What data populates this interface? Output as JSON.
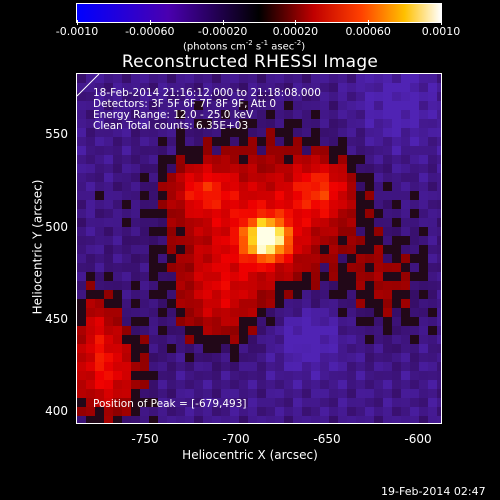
{
  "colorbar": {
    "tick_labels": [
      "-0.0010",
      "-0.00060",
      "-0.00020",
      "0.00020",
      "0.00060",
      "0.0010"
    ],
    "units_prefix": "(photons cm",
    "units_exp1": "-2",
    "units_mid1": " s",
    "units_exp2": "-1",
    "units_mid2": " asec",
    "units_exp3": "-2",
    "units_suffix": ")"
  },
  "title": "Reconstructed RHESSI Image",
  "annotations": {
    "time_range": "18-Feb-2014 21:16:12.000 to 21:18:08.000",
    "detectors": "Detectors: 3F 5F 6F 7F 8F 9F, Att 0",
    "energy": "Energy Range: 12.0 - 25.0 keV",
    "clean": "Clean     Total counts: 6.35E+03",
    "peak": "Position of Peak = [-679,493]"
  },
  "axes": {
    "xlabel": "Heliocentric X (arcsec)",
    "ylabel": "Heliocentric Y (arcsec)",
    "x_ticks": [
      "-750",
      "-700",
      "-650",
      "-600"
    ],
    "y_ticks": [
      "550",
      "500",
      "450",
      "400"
    ]
  },
  "timestamp": "19-Feb-2014 02:47",
  "colors": {
    "neg_max": "#0000ff",
    "zero": "#000000",
    "pos_mid": "#ff2000",
    "pos_max": "#ffffff"
  }
}
